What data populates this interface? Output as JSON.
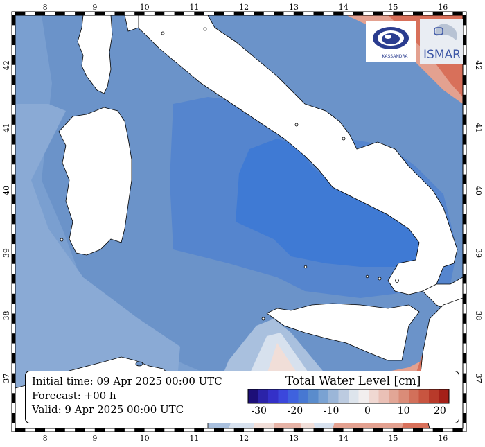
{
  "map": {
    "lon_ticks": [
      "8",
      "9",
      "10",
      "11",
      "12",
      "13",
      "14",
      "15",
      "16"
    ],
    "lat_ticks": [
      "42",
      "41",
      "40",
      "39",
      "38",
      "37"
    ],
    "lon_range": [
      7.4,
      16.4
    ],
    "lat_range": [
      36.2,
      42.8
    ]
  },
  "legend": {
    "initial_time": "Initial time: 09 Apr 2025 00:00 UTC",
    "forecast": "Forecast: +00 h",
    "valid": "Valid:  9 Apr 2025 00:00 UTC",
    "colorbar_title": "Total Water Level [cm]",
    "colorbar_labels": [
      "-30",
      "-20",
      "-10",
      "0",
      "10",
      "20"
    ],
    "colorbar_colors": [
      "#1d0f78",
      "#2b23a8",
      "#3430c8",
      "#3b47dc",
      "#3f62de",
      "#4778d2",
      "#5a8ccc",
      "#7aa2d2",
      "#9bb6d8",
      "#bccbe0",
      "#dde4ec",
      "#f2eeee",
      "#f0d8d2",
      "#eac0b6",
      "#e2a696",
      "#da8c78",
      "#d2705a",
      "#c85540",
      "#b83a2a",
      "#a42018"
    ]
  },
  "logos": {
    "left_text": "KASSANDRA",
    "right_text": "ISMAR"
  },
  "colors": {
    "sea_blue": "#6b93c9",
    "deep_blue": "#3f7ad4",
    "light_blue": "#8eaed6",
    "near_zero": "#d7e1ee",
    "warm": "#e3a190",
    "hot": "#d8705a",
    "land": "#ffffff"
  }
}
